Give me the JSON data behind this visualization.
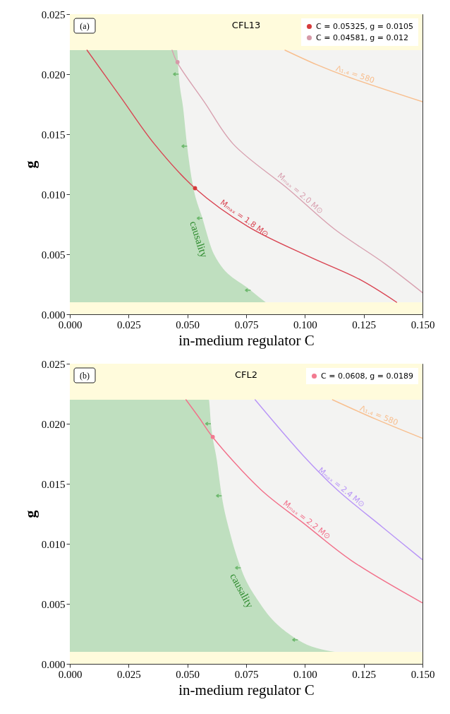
{
  "chart_data": [
    {
      "type": "line",
      "title": "CFL13",
      "annotations": [
        "(a)"
      ],
      "xlabel": "in-medium regulator C",
      "ylabel": "g",
      "xlim": [
        0,
        0.15
      ],
      "ylim": [
        0,
        0.025
      ],
      "xticks": [
        {
          "value": 0,
          "label": "0.000"
        },
        {
          "value": 0.025,
          "label": "0.025"
        },
        {
          "value": 0.05,
          "label": "0.050"
        },
        {
          "value": 0.075,
          "label": "0.075"
        },
        {
          "value": 0.1,
          "label": "0.100"
        },
        {
          "value": 0.125,
          "label": "0.125"
        },
        {
          "value": 0.15,
          "label": "0.150"
        }
      ],
      "yticks": [
        {
          "value": 0,
          "label": "0.000"
        },
        {
          "value": 0.005,
          "label": "0.005"
        },
        {
          "value": 0.01,
          "label": "0.010"
        },
        {
          "value": 0.015,
          "label": "0.015"
        },
        {
          "value": 0.02,
          "label": "0.020"
        },
        {
          "value": 0.025,
          "label": "0.025"
        }
      ],
      "bands": [
        {
          "axis": "y",
          "from": 0.001,
          "to": 0.022,
          "color": "#f3f3f2"
        },
        {
          "axis": "y",
          "from": 0.022,
          "to": 0.025,
          "color": "#fffbdc"
        },
        {
          "axis": "y",
          "from": 0,
          "to": 0.001,
          "color": "#fffbdc"
        }
      ],
      "legend": "top right",
      "series": [
        {
          "name": "causality",
          "type": "area",
          "color": "#bfdfbf",
          "x": [
            0,
            0.0456,
            0.0463,
            0.0483,
            0.0499,
            0.0521,
            0.0564,
            0.0613,
            0.0769,
            0.0833
          ],
          "values": [
            0.022,
            0.022,
            0.02,
            0.017,
            0.014,
            0.011,
            0.008,
            0.005,
            0.002,
            0.001
          ]
        },
        {
          "name": "Mₘₐₓ = 1.8 M⊙",
          "type": "line",
          "color": "#d94452",
          "x": [
            0.0073,
            0.0216,
            0.0359,
            0.05325,
            0.0758,
            0.1018,
            0.1233,
            0.139
          ],
          "values": [
            0.022,
            0.0181,
            0.0142,
            0.0105,
            0.0073,
            0.0048,
            0.0029,
            0.001
          ]
        },
        {
          "name": "Mₘₐₓ = 2.0 M⊙",
          "type": "line",
          "color": "#d8a1b0",
          "x": [
            0.0435,
            0.0456,
            0.0575,
            0.0694,
            0.0931,
            0.1125,
            0.1341,
            0.15
          ],
          "values": [
            0.022,
            0.021,
            0.0176,
            0.0142,
            0.0104,
            0.0071,
            0.0042,
            0.0018
          ]
        },
        {
          "name": "Λ₁.₄ = 580",
          "type": "line",
          "color": "#f8bf8f",
          "x": [
            0.0915,
            0.1049,
            0.1179,
            0.15
          ],
          "values": [
            0.022,
            0.0208,
            0.0198,
            0.0177
          ]
        },
        {
          "name": "C = 0.05325, g = 0.0105",
          "type": "scatter",
          "color": "#d63b3b",
          "x": [
            0.05325
          ],
          "values": [
            0.0105
          ]
        },
        {
          "name": "C = 0.04581, g = 0.012",
          "type": "scatter",
          "color": "#d69aa8",
          "x": [
            0.04581
          ],
          "values": [
            0.021
          ]
        }
      ]
    },
    {
      "type": "line",
      "title": "CFL2",
      "annotations": [
        "(b)"
      ],
      "xlabel": "in-medium regulator C",
      "ylabel": "g",
      "xlim": [
        0,
        0.15
      ],
      "ylim": [
        0,
        0.025
      ],
      "xticks": [
        {
          "value": 0,
          "label": "0.000"
        },
        {
          "value": 0.025,
          "label": "0.025"
        },
        {
          "value": 0.05,
          "label": "0.050"
        },
        {
          "value": 0.075,
          "label": "0.075"
        },
        {
          "value": 0.1,
          "label": "0.100"
        },
        {
          "value": 0.125,
          "label": "0.125"
        },
        {
          "value": 0.15,
          "label": "0.150"
        }
      ],
      "yticks": [
        {
          "value": 0,
          "label": "0.000"
        },
        {
          "value": 0.005,
          "label": "0.005"
        },
        {
          "value": 0.01,
          "label": "0.010"
        },
        {
          "value": 0.015,
          "label": "0.015"
        },
        {
          "value": 0.02,
          "label": "0.020"
        },
        {
          "value": 0.025,
          "label": "0.025"
        }
      ],
      "bands": [
        {
          "axis": "y",
          "from": 0.001,
          "to": 0.022,
          "color": "#f3f3f2"
        },
        {
          "axis": "y",
          "from": 0.022,
          "to": 0.025,
          "color": "#fffbdc"
        },
        {
          "axis": "y",
          "from": 0,
          "to": 0.001,
          "color": "#fffbdc"
        }
      ],
      "legend": "top right",
      "series": [
        {
          "name": "causality",
          "type": "area",
          "color": "#bfdfbf",
          "x": [
            0,
            0.0591,
            0.06,
            0.0625,
            0.0646,
            0.068,
            0.0727,
            0.081,
            0.097,
            0.1127
          ],
          "values": [
            0.022,
            0.022,
            0.02,
            0.017,
            0.014,
            0.011,
            0.008,
            0.005,
            0.002,
            0.001
          ]
        },
        {
          "name": "Mₘₐₓ = 2.2 M⊙",
          "type": "line",
          "color": "#f2708a",
          "x": [
            0.0494,
            0.055,
            0.0607,
            0.0813,
            0.0995,
            0.1198,
            0.1498
          ],
          "values": [
            0.022,
            0.0205,
            0.0189,
            0.0145,
            0.0117,
            0.0086,
            0.0051
          ]
        },
        {
          "name": "Mₘₐₓ = 2.4 M⊙",
          "type": "line",
          "color": "#b894f7",
          "x": [
            0.0788,
            0.0995,
            0.1137,
            0.1329,
            0.1498
          ],
          "values": [
            0.022,
            0.0173,
            0.0145,
            0.0114,
            0.0087
          ]
        },
        {
          "name": "Λ₁.₄ = 580",
          "type": "line",
          "color": "#f8bf8f",
          "x": [
            0.1117,
            0.1299,
            0.1498
          ],
          "values": [
            0.022,
            0.0204,
            0.0188
          ]
        },
        {
          "name": "C = 0.0608, g = 0.0189",
          "type": "scatter",
          "color": "#f27a90",
          "x": [
            0.0608
          ],
          "values": [
            0.0189
          ]
        }
      ]
    }
  ]
}
